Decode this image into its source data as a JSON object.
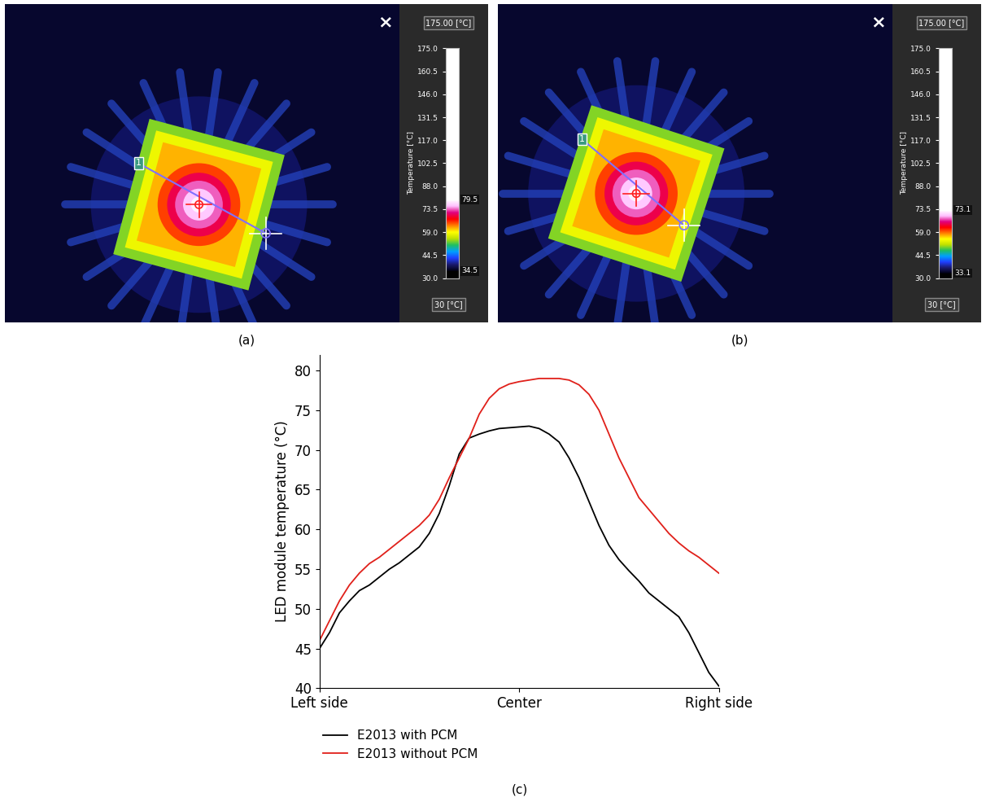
{
  "chart_data": [
    {
      "type": "thermal_image",
      "panel_label": "(a)",
      "close_button": "×",
      "range_box": "175.00 [°C]",
      "min_box": "30 [°C]",
      "colorbar_label": "Temperature [°C]",
      "ylim": [
        30,
        175
      ],
      "yticks": [
        {
          "value": 30,
          "label": "30.0"
        },
        44.5,
        {
          "value": 59,
          "label": "59.0"
        },
        73.5,
        {
          "value": 88,
          "label": "88.0"
        },
        102.5,
        {
          "value": 117,
          "label": "117.0"
        },
        131.5,
        {
          "value": 146,
          "label": "146.0"
        },
        160.5,
        {
          "value": 175,
          "label": "175.0"
        }
      ],
      "max": 79.5,
      "min": 34.5,
      "line_label": "1"
    },
    {
      "type": "thermal_image",
      "panel_label": "(b)",
      "close_button": "×",
      "range_box": "175.00 [°C]",
      "min_box": "30 [°C]",
      "colorbar_label": "Temperature [°C]",
      "ylim": [
        30,
        175
      ],
      "yticks": [
        {
          "value": 30,
          "label": "30.0"
        },
        44.5,
        {
          "value": 59,
          "label": "59.0"
        },
        73.5,
        {
          "value": 88,
          "label": "88.0"
        },
        102.5,
        {
          "value": 117,
          "label": "117.0"
        },
        131.5,
        {
          "value": 146,
          "label": "146.0"
        },
        160.5,
        {
          "value": 175,
          "label": "175.0"
        }
      ],
      "max": 73.1,
      "min": 33.1,
      "line_label": "1"
    },
    {
      "type": "line",
      "panel_label": "(c)",
      "ylabel": "LED module temperature (°C)",
      "x": [
        0,
        2.5,
        5,
        7.5,
        10,
        12.5,
        15,
        17.5,
        20,
        22.5,
        25,
        27.5,
        30,
        32.5,
        35,
        37.5,
        40,
        42.5,
        45,
        47.5,
        50,
        52.5,
        55,
        57.5,
        60,
        62.5,
        65,
        67.5,
        70,
        72.5,
        75,
        77.5,
        80,
        82.5,
        85,
        87.5,
        90,
        92.5,
        95,
        97.5,
        100
      ],
      "xlim": [
        0,
        100
      ],
      "xticks": [
        {
          "value": 0,
          "label": "Left side"
        },
        {
          "value": 50,
          "label": "Center"
        },
        {
          "value": 100,
          "label": "Right side"
        }
      ],
      "ylim": [
        40,
        82
      ],
      "yticks": [
        40,
        45,
        50,
        55,
        60,
        65,
        70,
        75,
        80
      ],
      "legend": "below",
      "series": [
        {
          "name": "E2013 with PCM",
          "color": "#000000",
          "values": [
            45,
            47,
            49.5,
            51,
            52.3,
            53,
            54,
            55,
            55.8,
            56.8,
            57.8,
            59.5,
            62,
            65.5,
            69.5,
            71.5,
            72,
            72.4,
            72.7,
            72.8,
            72.9,
            73,
            72.7,
            72,
            71,
            69,
            66.5,
            63.5,
            60.5,
            58,
            56.2,
            54.8,
            53.5,
            52,
            51,
            50,
            49,
            47,
            44.5,
            42,
            40.3
          ]
        },
        {
          "name": "E2013 without PCM",
          "color": "#e0201a",
          "values": [
            46,
            48.5,
            51,
            53,
            54.5,
            55.7,
            56.5,
            57.5,
            58.5,
            59.5,
            60.5,
            61.8,
            63.8,
            66.5,
            69,
            71.5,
            74.5,
            76.5,
            77.7,
            78.3,
            78.6,
            78.8,
            79,
            79,
            79,
            78.8,
            78.2,
            77,
            75,
            72,
            69,
            66.5,
            64,
            62.5,
            61,
            59.5,
            58.3,
            57.3,
            56.5,
            55.5,
            54.5
          ]
        }
      ]
    }
  ]
}
